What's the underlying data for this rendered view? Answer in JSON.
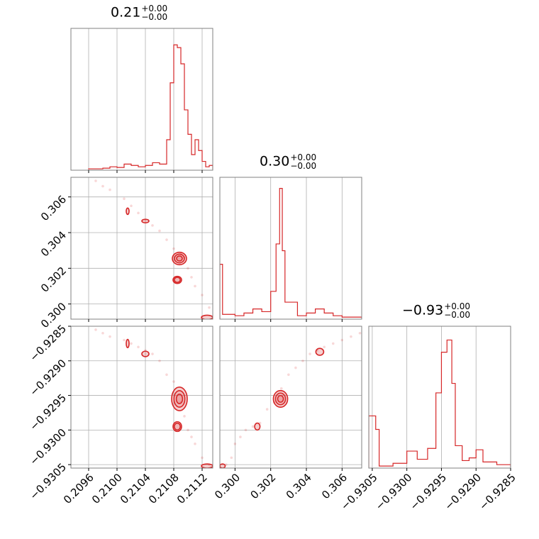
{
  "panel_titles": [
    {
      "value": "0.21",
      "upper": "+0.00",
      "lower": "−0.00"
    },
    {
      "value": "0.30",
      "upper": "+0.00",
      "lower": "−0.00"
    },
    {
      "value": "−0.93",
      "upper": "+0.00",
      "lower": "−0.00"
    }
  ],
  "colors": {
    "series": "#d62728",
    "grid": "#b0b0b0",
    "axes": "#808080"
  },
  "chart_data": {
    "type": "corner",
    "parameters": [
      {
        "range": [
          0.20935,
          0.21135
        ],
        "ticks": [
          0.2096,
          0.21,
          0.2104,
          0.2108,
          0.2112
        ],
        "tick_labels": [
          "0.2096",
          "0.2100",
          "0.2104",
          "0.2108",
          "0.2112"
        ]
      },
      {
        "range": [
          0.29915,
          0.3071
        ],
        "ticks": [
          0.3,
          0.302,
          0.304,
          0.306
        ],
        "tick_labels": [
          "0.300",
          "0.302",
          "0.304",
          "0.306"
        ]
      },
      {
        "range": [
          -0.93055,
          -0.9285
        ],
        "ticks": [
          -0.9305,
          -0.93,
          -0.9295,
          -0.929,
          -0.9285
        ],
        "tick_labels": [
          "−0.9305",
          "−0.9300",
          "−0.9295",
          "−0.9290",
          "−0.9285"
        ]
      }
    ],
    "marginals": [
      {
        "param": 0,
        "bin_edges": [
          0.2096,
          0.2098,
          0.2099,
          0.21,
          0.2101,
          0.2102,
          0.2103,
          0.2104,
          0.2105,
          0.2106,
          0.2107,
          0.21075,
          0.2108,
          0.21085,
          0.2109,
          0.21095,
          0.211,
          0.21105,
          0.2111,
          0.21115,
          0.2112,
          0.21125,
          0.2113,
          0.21135
        ],
        "heights": [
          0.005,
          0.01,
          0.02,
          0.015,
          0.04,
          0.03,
          0.02,
          0.03,
          0.05,
          0.04,
          0.22,
          0.64,
          0.92,
          0.9,
          0.78,
          0.44,
          0.26,
          0.11,
          0.22,
          0.14,
          0.06,
          0.02,
          0.03
        ]
      },
      {
        "param": 1,
        "bin_edges": [
          0.29915,
          0.2993,
          0.3,
          0.3005,
          0.301,
          0.3015,
          0.302,
          0.3023,
          0.3025,
          0.30265,
          0.3028,
          0.3035,
          0.304,
          0.3045,
          0.305,
          0.3055,
          0.306,
          0.3071
        ],
        "heights": [
          0.4,
          0.03,
          0.02,
          0.04,
          0.07,
          0.05,
          0.2,
          0.55,
          0.96,
          0.5,
          0.12,
          0.02,
          0.04,
          0.07,
          0.04,
          0.02,
          0.01
        ]
      },
      {
        "param": 2,
        "bin_edges": [
          -0.93055,
          -0.93045,
          -0.9304,
          -0.9302,
          -0.93,
          -0.92985,
          -0.9297,
          -0.92958,
          -0.9295,
          -0.92942,
          -0.92935,
          -0.9293,
          -0.9292,
          -0.9291,
          -0.929,
          -0.9289,
          -0.9287,
          -0.9285
        ],
        "heights": [
          0.38,
          0.28,
          0.01,
          0.03,
          0.12,
          0.06,
          0.14,
          0.55,
          0.85,
          0.94,
          0.62,
          0.16,
          0.05,
          0.07,
          0.13,
          0.04,
          0.02
        ]
      }
    ],
    "scatter": [
      {
        "x_param": 0,
        "y_param": 1,
        "points": [
          [
            0.2097,
            0.3069
          ],
          [
            0.2098,
            0.3066
          ],
          [
            0.2099,
            0.3064
          ],
          [
            0.2101,
            0.3059
          ],
          [
            0.2102,
            0.3055
          ],
          [
            0.2103,
            0.3051
          ],
          [
            0.2104,
            0.3047
          ],
          [
            0.2105,
            0.3044
          ],
          [
            0.2106,
            0.3041
          ],
          [
            0.2107,
            0.3036
          ],
          [
            0.2108,
            0.3031
          ],
          [
            0.2109,
            0.3028
          ],
          [
            0.21095,
            0.3026
          ],
          [
            0.211,
            0.302
          ],
          [
            0.21105,
            0.3015
          ],
          [
            0.2111,
            0.301
          ],
          [
            0.2112,
            0.3005
          ],
          [
            0.2113,
            0.2998
          ]
        ]
      },
      {
        "x_param": 0,
        "y_param": 2,
        "points": [
          [
            0.2097,
            -0.92855
          ],
          [
            0.2098,
            -0.9286
          ],
          [
            0.2099,
            -0.92865
          ],
          [
            0.2101,
            -0.9287
          ],
          [
            0.2102,
            -0.92875
          ],
          [
            0.2103,
            -0.9288
          ],
          [
            0.2104,
            -0.92885
          ],
          [
            0.2105,
            -0.9289
          ],
          [
            0.2106,
            -0.929
          ],
          [
            0.2107,
            -0.9292
          ],
          [
            0.2108,
            -0.9293
          ],
          [
            0.2109,
            -0.9296
          ],
          [
            0.21095,
            -0.9298
          ],
          [
            0.211,
            -0.93
          ],
          [
            0.21105,
            -0.9301
          ],
          [
            0.2111,
            -0.9302
          ],
          [
            0.2112,
            -0.9304
          ],
          [
            0.2113,
            -0.9305
          ]
        ]
      },
      {
        "x_param": 1,
        "y_param": 2,
        "points": [
          [
            0.2995,
            -0.9305
          ],
          [
            0.2998,
            -0.9304
          ],
          [
            0.3,
            -0.9302
          ],
          [
            0.3003,
            -0.9301
          ],
          [
            0.3006,
            -0.93
          ],
          [
            0.301,
            -0.92995
          ],
          [
            0.3014,
            -0.9299
          ],
          [
            0.3018,
            -0.9297
          ],
          [
            0.3022,
            -0.9296
          ],
          [
            0.3026,
            -0.9294
          ],
          [
            0.303,
            -0.9292
          ],
          [
            0.3034,
            -0.9291
          ],
          [
            0.3038,
            -0.929
          ],
          [
            0.3042,
            -0.9289
          ],
          [
            0.3046,
            -0.92885
          ],
          [
            0.305,
            -0.9288
          ],
          [
            0.3055,
            -0.92875
          ],
          [
            0.306,
            -0.9287
          ],
          [
            0.3065,
            -0.92865
          ],
          [
            0.307,
            -0.9286
          ]
        ]
      }
    ],
    "contours": [
      {
        "x_param": 0,
        "y_param": 1,
        "blobs": [
          {
            "cx": 0.21088,
            "cy": 0.30255,
            "rx": 0.0001,
            "ry": 0.00035,
            "levels": 3
          },
          {
            "cx": 0.21085,
            "cy": 0.30135,
            "rx": 6e-05,
            "ry": 0.0002,
            "levels": 2
          },
          {
            "cx": 0.2104,
            "cy": 0.30465,
            "rx": 5e-05,
            "ry": 0.0001,
            "levels": 1
          },
          {
            "cx": 0.21015,
            "cy": 0.3052,
            "rx": 2e-05,
            "ry": 0.00018,
            "levels": 1
          },
          {
            "cx": 0.21127,
            "cy": 0.29925,
            "rx": 8e-05,
            "ry": 0.00012,
            "levels": 1
          }
        ]
      },
      {
        "x_param": 0,
        "y_param": 2,
        "blobs": [
          {
            "cx": 0.21088,
            "cy": -0.92955,
            "rx": 0.00011,
            "ry": 0.00017,
            "levels": 3
          },
          {
            "cx": 0.21085,
            "cy": -0.92995,
            "rx": 6e-05,
            "ry": 7e-05,
            "levels": 2
          },
          {
            "cx": 0.2104,
            "cy": -0.9289,
            "rx": 5e-05,
            "ry": 4e-05,
            "levels": 1
          },
          {
            "cx": 0.21015,
            "cy": -0.92875,
            "rx": 2e-05,
            "ry": 6e-05,
            "levels": 1
          },
          {
            "cx": 0.21127,
            "cy": -0.93052,
            "rx": 8e-05,
            "ry": 3e-05,
            "levels": 1
          }
        ]
      },
      {
        "x_param": 1,
        "y_param": 2,
        "blobs": [
          {
            "cx": 0.30255,
            "cy": -0.92955,
            "rx": 0.0004,
            "ry": 0.00012,
            "levels": 3
          },
          {
            "cx": 0.30475,
            "cy": -0.92887,
            "rx": 0.00022,
            "ry": 5e-05,
            "levels": 1
          },
          {
            "cx": 0.30125,
            "cy": -0.92995,
            "rx": 0.00015,
            "ry": 5e-05,
            "levels": 1
          },
          {
            "cx": 0.2993,
            "cy": -0.93052,
            "rx": 0.00015,
            "ry": 3e-05,
            "levels": 1
          }
        ]
      }
    ],
    "grid": true
  }
}
